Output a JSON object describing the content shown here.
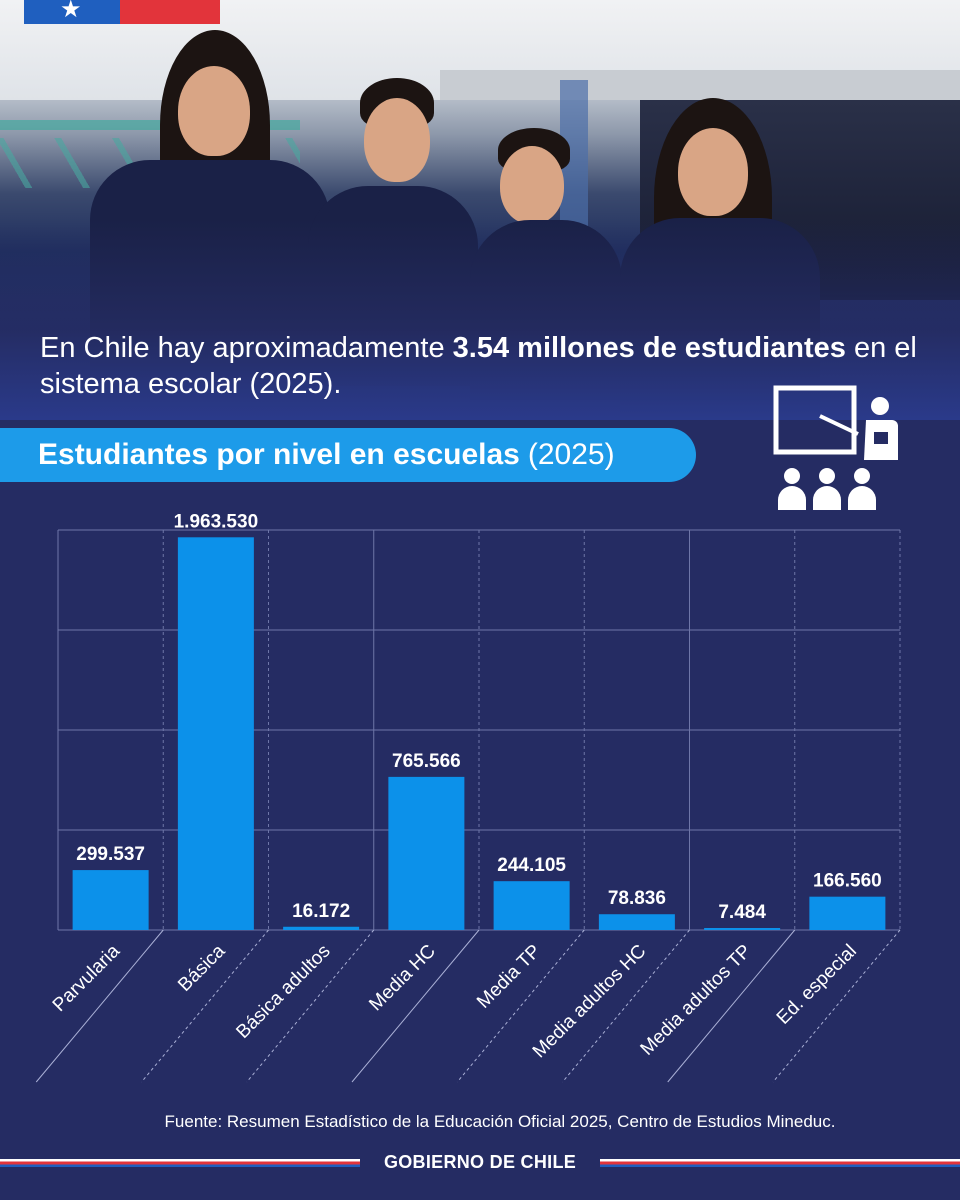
{
  "headline": {
    "prefix": "En Chile hay aproximadamente ",
    "highlight": "3.54 millones de estudiantes",
    "suffix": " en el sistema escolar (2025)."
  },
  "chart_title": {
    "bold": "Estudiantes por nivel en escuelas",
    "year": "(2025)"
  },
  "chart_data": {
    "type": "bar",
    "title": "Estudiantes por nivel en escuelas (2025)",
    "categories": [
      "Parvularia",
      "Básica",
      "Básica adultos",
      "Media HC",
      "Media TP",
      "Media adultos HC",
      "Media adultos TP",
      "Ed. especial"
    ],
    "values": [
      299537,
      1963530,
      16172,
      765566,
      244105,
      78836,
      7484,
      166560
    ],
    "value_labels": [
      "299.537",
      "1.963.530",
      "16.172",
      "765.566",
      "244.105",
      "78.836",
      "7.484",
      "166.560"
    ],
    "ylim": [
      0,
      2000000
    ],
    "grid": true,
    "colors": {
      "bar": "#0c91ea",
      "background": "#252c63",
      "grid": "#6e76a8"
    }
  },
  "source": "Fuente: Resumen Estadístico de la Educación Oficial 2025, Centro de Estudios Mineduc.",
  "footer": {
    "brand": "GOBIERNO DE CHILE"
  },
  "icons": {
    "flag": "chile-flag-icon",
    "teacher": "teacher-classroom-icon"
  }
}
